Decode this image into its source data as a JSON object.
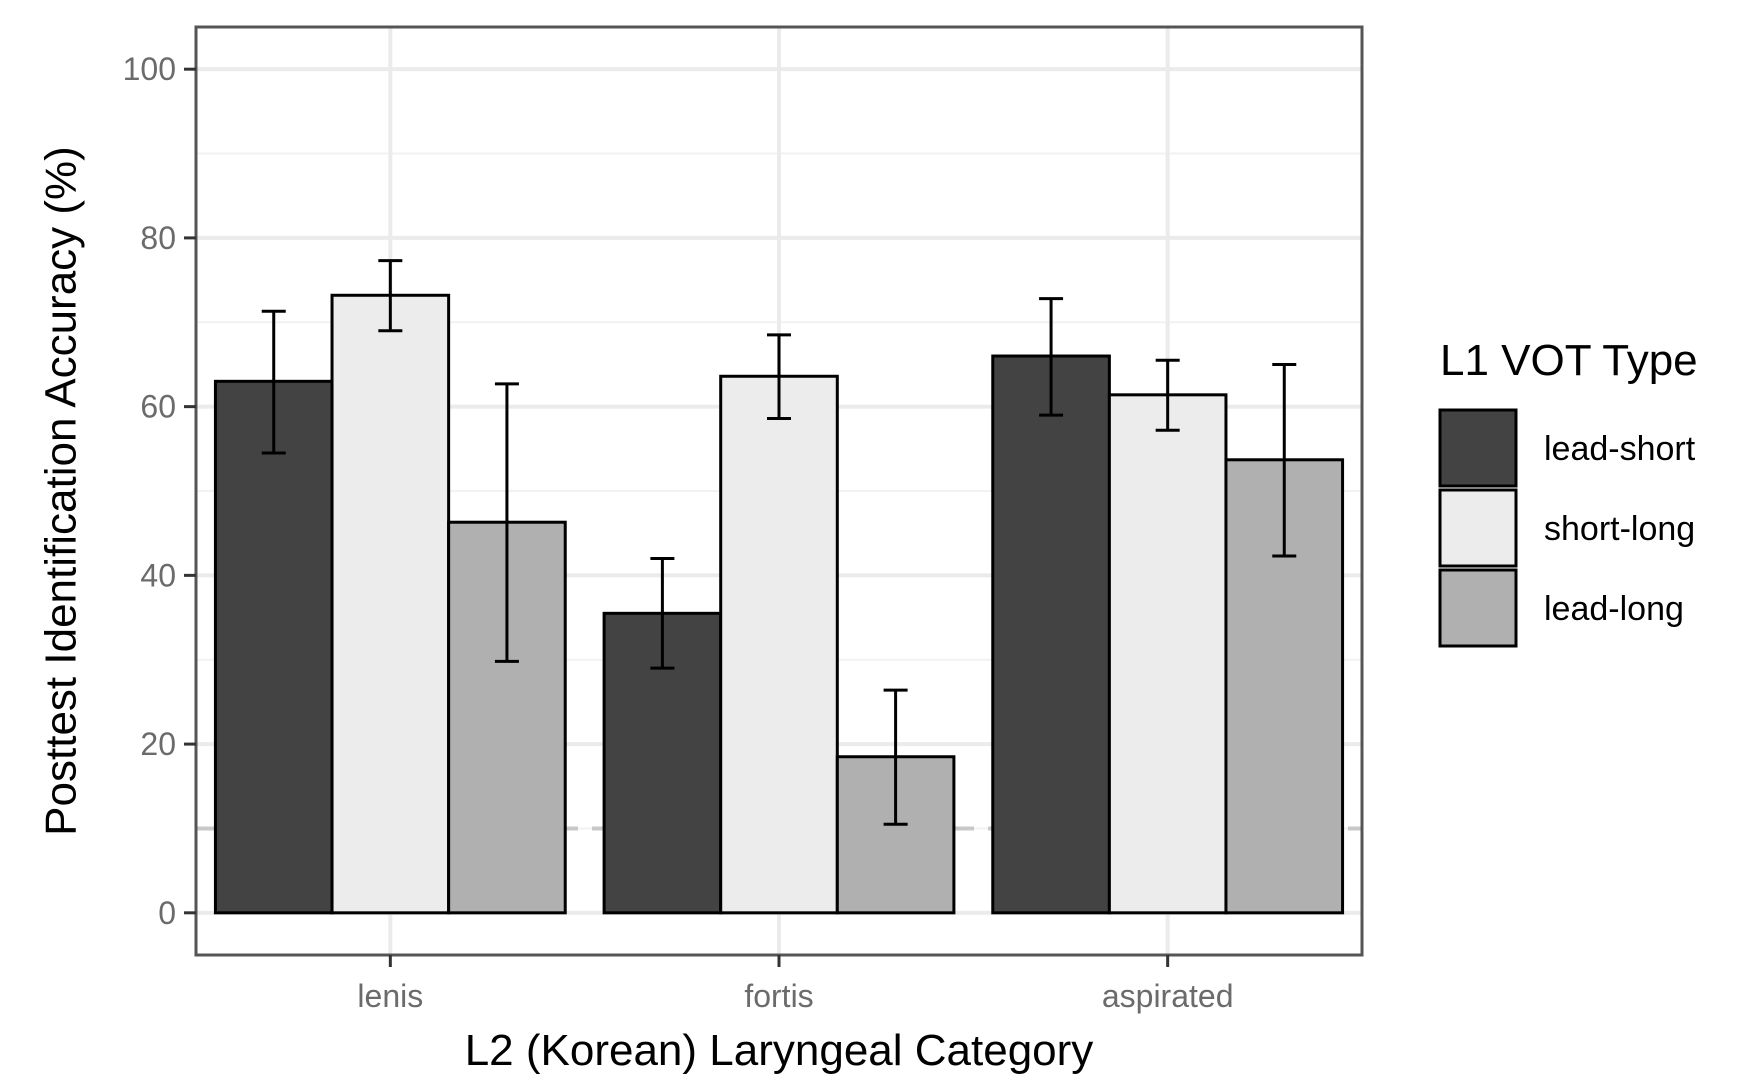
{
  "chart_data": {
    "type": "bar",
    "title": "",
    "xlabel": "L2 (Korean) Laryngeal Category",
    "ylabel": "Posttest Identification Accuracy (%)",
    "categories": [
      "lenis",
      "fortis",
      "aspirated"
    ],
    "ylim": [
      -5,
      105
    ],
    "yticks": [
      0,
      20,
      40,
      60,
      80,
      100
    ],
    "ytick_labels": [
      "0",
      "20",
      "40",
      "60",
      "80",
      "100"
    ],
    "grid": true,
    "reference_line": {
      "y": 10,
      "style": "dashed",
      "color": "#c8c8c8"
    },
    "legend": {
      "title": "L1 VOT Type",
      "position": "right"
    },
    "series": [
      {
        "name": "lead-short",
        "color": "#434343",
        "values": [
          63,
          35.5,
          66
        ],
        "err_low": [
          54.5,
          29,
          59
        ],
        "err_high": [
          71.3,
          42,
          72.8
        ]
      },
      {
        "name": "short-long",
        "color": "#ececec",
        "values": [
          73.2,
          63.6,
          61.4
        ],
        "err_low": [
          69,
          58.6,
          57.2
        ],
        "err_high": [
          77.3,
          68.5,
          65.5
        ]
      },
      {
        "name": "lead-long",
        "color": "#b0b0b0",
        "values": [
          46.3,
          18.5,
          53.7
        ],
        "err_low": [
          29.8,
          10.5,
          42.3
        ],
        "err_high": [
          62.7,
          26.4,
          65
        ]
      }
    ]
  }
}
